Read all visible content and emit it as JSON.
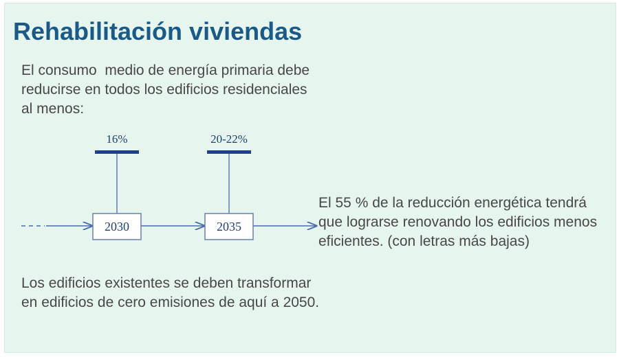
{
  "title": "Rehabilitación viviendas",
  "intro": "El consumo  medio de energía primaria debe reducirse en todos los edificios residenciales  al menos:",
  "timeline": {
    "milestones": [
      {
        "year": "2030",
        "target": "16%"
      },
      {
        "year": "2035",
        "target": "20-22%"
      }
    ],
    "colors": {
      "bar": "#1f3f8e",
      "line": "#4a6aa8",
      "text": "#1f3f6e"
    }
  },
  "right_text": "El 55 % de la reducción energética tendrá que lograrse renovando los edificios menos eficientes. (con letras más bajas)",
  "bottom_text": "Los edificios existentes se deben transformar en edificios de cero emisiones de aquí a 2050."
}
